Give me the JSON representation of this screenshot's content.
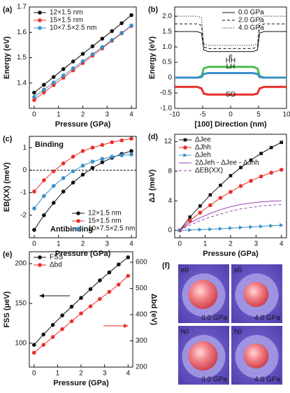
{
  "chart_data": [
    {
      "panel": "(a)",
      "type": "line",
      "xlabel": "Pressure (GPa)",
      "ylabel": "Energy (eV)",
      "x": [
        0,
        0.4,
        0.8,
        1.2,
        1.6,
        2.0,
        2.4,
        2.8,
        3.2,
        3.6,
        4.0
      ],
      "xlim": [
        -0.2,
        4.2
      ],
      "xticks": [
        0,
        1,
        2,
        3,
        4
      ],
      "ylim": [
        1.3,
        1.7
      ],
      "yticks": [
        1.4,
        1.5,
        1.6,
        1.7
      ],
      "legend": "upper-left",
      "series": [
        {
          "name": "12×1.5 nm",
          "color": "#111111",
          "marker": "circle",
          "values": [
            1.362,
            1.393,
            1.424,
            1.455,
            1.485,
            1.515,
            1.545,
            1.575,
            1.605,
            1.636,
            1.668
          ]
        },
        {
          "name": "15×1.5 nm",
          "color": "#e8302a",
          "marker": "circle",
          "values": [
            1.333,
            1.363,
            1.392,
            1.421,
            1.45,
            1.479,
            1.508,
            1.537,
            1.567,
            1.596,
            1.625
          ]
        },
        {
          "name": "10×7.5×2.5 nm",
          "color": "#3a8fc8",
          "marker": "circle",
          "values": [
            1.345,
            1.374,
            1.402,
            1.43,
            1.458,
            1.486,
            1.514,
            1.542,
            1.57,
            1.598,
            1.627
          ]
        }
      ]
    },
    {
      "panel": "(b)",
      "type": "profile",
      "xlabel": "[100] Direction (nm)",
      "ylabel": "Energy (eV)",
      "x": [
        -10,
        -6,
        -5.2,
        -4.8,
        -4,
        0,
        4,
        4.8,
        5.2,
        6,
        10
      ],
      "xlim": [
        -10,
        10
      ],
      "xticks": [
        -10,
        -5,
        0,
        5,
        10
      ],
      "ylim": [
        -1.0,
        2.3
      ],
      "yticks": [
        {
          "value": -1,
          "label": "-1.0"
        },
        -0.5,
        0,
        0.5,
        {
          "value": 1,
          "label": "1.0"
        },
        1.5,
        {
          "value": 2,
          "label": "2.0"
        }
      ],
      "legend": "upper-right",
      "annotation": "e",
      "series": [
        {
          "name": "0.0 GPa",
          "color": "#111111",
          "dash": "solid",
          "values": [
            1.5,
            1.5,
            1.45,
            0.9,
            0.85,
            0.85,
            0.85,
            0.9,
            1.45,
            1.5,
            1.5
          ]
        },
        {
          "name": "2.0 GPa",
          "color": "#111111",
          "dash": "dashed",
          "values": [
            1.75,
            1.75,
            1.7,
            1.0,
            0.95,
            0.95,
            0.95,
            1.0,
            1.7,
            1.75,
            1.75
          ]
        },
        {
          "name": "4.0 GPa",
          "color": "#111111",
          "dash": "dotted",
          "values": [
            2.0,
            2.0,
            1.95,
            1.1,
            1.05,
            1.05,
            1.05,
            1.1,
            1.95,
            2.0,
            2.0
          ]
        }
      ],
      "bands": [
        {
          "label": "HH",
          "color": "#4cbf4c",
          "values": [
            0,
            0,
            0.05,
            0.3,
            0.35,
            0.35,
            0.35,
            0.3,
            0.05,
            0,
            0
          ]
        },
        {
          "label": "LH",
          "color": "#3a8fc8",
          "values": [
            0,
            0,
            0.02,
            0.12,
            0.15,
            0.15,
            0.15,
            0.12,
            0.02,
            0,
            0
          ]
        },
        {
          "label": "SO",
          "color": "#e8302a",
          "values": [
            -0.3,
            -0.3,
            -0.35,
            -0.52,
            -0.55,
            -0.55,
            -0.55,
            -0.52,
            -0.35,
            -0.3,
            -0.3
          ]
        }
      ]
    },
    {
      "panel": "(c)",
      "type": "line",
      "xlabel": "Pressure (GPa)",
      "ylabel": "EB(XX) (meV)",
      "x": [
        0,
        0.4,
        0.8,
        1.2,
        1.6,
        2.0,
        2.4,
        2.8,
        3.2,
        3.6,
        4.0
      ],
      "xlim": [
        -0.2,
        4.2
      ],
      "xticks": [
        0,
        1,
        2,
        3,
        4
      ],
      "ylim": [
        -3,
        1.5
      ],
      "yticks": [
        -2,
        -1,
        0,
        1
      ],
      "legend": "lower-right",
      "zero_line": true,
      "annotations": [
        "Binding",
        "Antibinding"
      ],
      "series": [
        {
          "name": "12×1.5 nm",
          "color": "#111111",
          "marker": "circle",
          "values": [
            -2.65,
            -2.0,
            -1.45,
            -0.95,
            -0.55,
            -0.2,
            0.1,
            0.35,
            0.55,
            0.72,
            0.85
          ]
        },
        {
          "name": "15×1.5 nm",
          "color": "#e8302a",
          "marker": "circle",
          "values": [
            -0.95,
            -0.45,
            -0.05,
            0.3,
            0.6,
            0.85,
            1.0,
            1.12,
            1.24,
            1.32,
            1.4
          ]
        },
        {
          "name": "10×7.5×2.5 nm",
          "color": "#3a8fc8",
          "marker": "circle",
          "values": [
            -1.7,
            -1.15,
            -0.7,
            -0.35,
            -0.05,
            0.2,
            0.38,
            0.5,
            0.6,
            0.66,
            0.7
          ]
        }
      ]
    },
    {
      "panel": "(d)",
      "type": "line",
      "xlabel": "Pressure (GPa)",
      "ylabel": "ΔJ (meV)",
      "x": [
        0,
        0.4,
        0.8,
        1.2,
        1.6,
        2.0,
        2.4,
        2.8,
        3.2,
        3.6,
        4.0
      ],
      "xlim": [
        -0.2,
        4.2
      ],
      "xticks": [
        0,
        1,
        2,
        3,
        4
      ],
      "ylim": [
        -1,
        13
      ],
      "yticks": [
        0,
        4,
        8,
        12
      ],
      "legend": "upper-left",
      "series": [
        {
          "name": "ΔJee",
          "color": "#111111",
          "marker": "square",
          "values": [
            0,
            1.8,
            3.3,
            4.8,
            6.1,
            7.4,
            8.5,
            9.5,
            10.4,
            11.2,
            11.9
          ]
        },
        {
          "name": "ΔJhh",
          "color": "#e8302a",
          "marker": "circle",
          "values": [
            0,
            1.3,
            2.4,
            3.4,
            4.4,
            5.2,
            6.0,
            6.7,
            7.3,
            7.8,
            8.2
          ]
        },
        {
          "name": "ΔJeh",
          "color": "#3a8fc8",
          "marker": "triangle",
          "values": [
            0,
            0.05,
            0.1,
            0.15,
            0.22,
            0.3,
            0.38,
            0.46,
            0.54,
            0.62,
            0.7
          ]
        },
        {
          "name": "2ΔJeh - ΔJee - ΔJhh",
          "color": "#9b3fb5",
          "dash": "solid",
          "values": [
            0,
            1.0,
            1.7,
            2.3,
            2.8,
            3.2,
            3.5,
            3.7,
            3.85,
            3.95,
            4.0
          ]
        },
        {
          "name": "ΔEB(XX)",
          "color": "#9b3fb5",
          "dash": "dashed",
          "values": [
            0,
            0.7,
            1.3,
            1.8,
            2.2,
            2.6,
            2.9,
            3.1,
            3.3,
            3.4,
            3.5
          ]
        }
      ]
    },
    {
      "panel": "(e)",
      "type": "line",
      "xlabel": "Pressure (GPa)",
      "ylabel": "FSS (μeV)",
      "y2label": "Δbd (eV)",
      "x": [
        0,
        0.4,
        0.8,
        1.2,
        1.6,
        2.0,
        2.4,
        2.8,
        3.2,
        3.6,
        4.0
      ],
      "xlim": [
        -0.2,
        4.2
      ],
      "xticks": [
        0,
        1,
        2,
        3,
        4
      ],
      "ylim": [
        70,
        215
      ],
      "yticks": [
        100,
        150,
        200
      ],
      "y2lim": [
        200,
        640
      ],
      "y2ticks": [
        200,
        300,
        400,
        500,
        600
      ],
      "legend": "upper-left",
      "series": [
        {
          "name": "FSS",
          "color": "#111111",
          "marker": "circle",
          "values": [
            98,
            111,
            123,
            135,
            146,
            157,
            168,
            179,
            189,
            199,
            208
          ]
        },
        {
          "name": "Δbd",
          "color": "#e8302a",
          "marker": "circle",
          "axis": "y2",
          "values": [
            255,
            285,
            315,
            345,
            375,
            405,
            432,
            460,
            487,
            515,
            548
          ]
        }
      ]
    }
  ],
  "image_panel": {
    "panel": "(f)",
    "images": [
      {
        "label": "e0",
        "pressure": "0.0 GPa"
      },
      {
        "label": "e0",
        "pressure": "4.0 GPa"
      },
      {
        "label": "h0",
        "pressure": "0.0 GPa"
      },
      {
        "label": "h0",
        "pressure": "4.0 GPa"
      }
    ]
  }
}
